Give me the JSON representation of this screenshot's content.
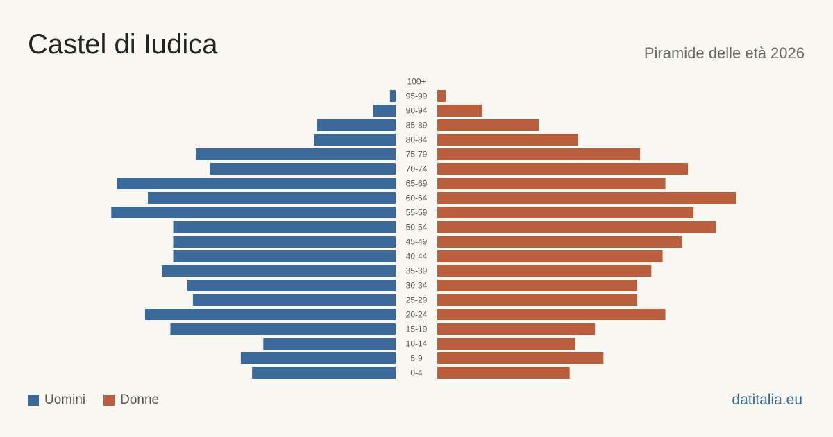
{
  "title": "Castel di Iudica",
  "subtitle": "Piramide delle età 2026",
  "source": "datitalia.eu",
  "colors": {
    "male": "#3b6a9a",
    "female": "#b95f3e",
    "background": "#f9f7f2"
  },
  "chart_data": {
    "type": "bar",
    "orientation": "horizontal-pyramid",
    "categories": [
      "100+",
      "95-99",
      "90-94",
      "85-89",
      "80-84",
      "75-79",
      "70-74",
      "65-69",
      "60-64",
      "55-59",
      "50-54",
      "45-49",
      "40-44",
      "35-39",
      "30-34",
      "25-29",
      "20-24",
      "15-19",
      "10-14",
      "5-9",
      "0-4"
    ],
    "series": [
      {
        "name": "Uomini",
        "values": [
          0,
          2,
          8,
          28,
          29,
          71,
          66,
          99,
          88,
          101,
          79,
          79,
          79,
          83,
          74,
          72,
          89,
          80,
          47,
          55,
          51
        ]
      },
      {
        "name": "Donne",
        "values": [
          0,
          3,
          16,
          36,
          50,
          72,
          89,
          81,
          106,
          91,
          99,
          87,
          80,
          76,
          71,
          71,
          81,
          56,
          49,
          59,
          47
        ]
      }
    ],
    "legend": "bottom-left",
    "grid": false
  }
}
